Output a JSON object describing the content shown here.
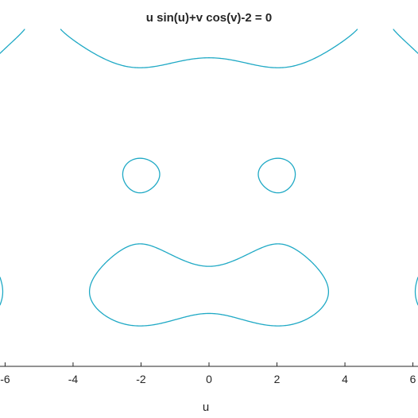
{
  "chart_data": {
    "type": "contour",
    "title": "u sin(u)+v cos(v)-2 = 0",
    "xlabel": "u",
    "ylabel": "",
    "equation": "u sin(u)+v cos(v)-2 = 0",
    "xlim": [
      -6.15,
      6.15
    ],
    "ylim": [
      -6.15,
      6.15
    ],
    "xticks": [
      -6,
      -4,
      -2,
      0,
      2,
      4,
      6
    ],
    "xtick_labels": [
      "-6",
      "-4",
      "-2",
      "0",
      "2",
      "4",
      "6"
    ],
    "grid": false,
    "line_color": "#1fa9c5",
    "axis_color": "#262626"
  }
}
